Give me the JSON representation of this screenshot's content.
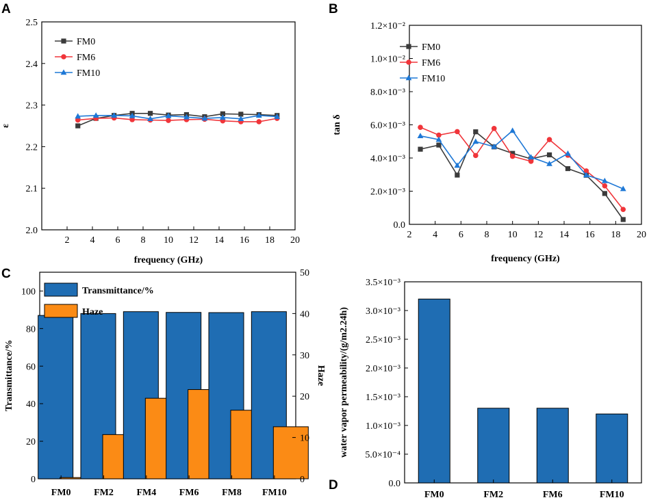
{
  "chart_data": [
    {
      "panel": "A",
      "type": "line",
      "title": "",
      "xlabel": "frequency (GHz)",
      "ylabel": "ε",
      "xlim": [
        0,
        20
      ],
      "ylim": [
        2.0,
        2.5
      ],
      "xticks": [
        "2",
        "4",
        "6",
        "8",
        "10",
        "12",
        "14",
        "16",
        "18",
        "20"
      ],
      "yticks": [
        "2.0",
        "2.1",
        "2.2",
        "2.3",
        "2.4",
        "2.5"
      ],
      "x": [
        2.85,
        4.28,
        5.71,
        7.14,
        8.57,
        10.0,
        11.43,
        12.86,
        14.29,
        15.72,
        17.15,
        18.58
      ],
      "legend_position": "top-left",
      "series": [
        {
          "name": "FM0",
          "color": "#3b3b3b",
          "marker": "square",
          "values": [
            2.25,
            2.268,
            2.275,
            2.28,
            2.28,
            2.276,
            2.277,
            2.272,
            2.279,
            2.278,
            2.277,
            2.275
          ]
        },
        {
          "name": "FM6",
          "color": "#f0353a",
          "marker": "circle",
          "values": [
            2.264,
            2.268,
            2.269,
            2.265,
            2.264,
            2.263,
            2.265,
            2.266,
            2.262,
            2.26,
            2.26,
            2.268
          ]
        },
        {
          "name": "FM10",
          "color": "#1e78d6",
          "marker": "triangle",
          "values": [
            2.273,
            2.275,
            2.275,
            2.274,
            2.267,
            2.274,
            2.271,
            2.268,
            2.27,
            2.267,
            2.275,
            2.272
          ]
        }
      ]
    },
    {
      "panel": "B",
      "type": "line",
      "title": "",
      "xlabel": "frequency (GHz)",
      "ylabel": "tan δ",
      "xlim": [
        2,
        20
      ],
      "ylim": [
        0,
        0.012
      ],
      "xticks": [
        "2",
        "4",
        "6",
        "8",
        "10",
        "12",
        "14",
        "16",
        "18",
        "20"
      ],
      "yticks": [
        "0.0",
        "2.0×10⁻³",
        "4.0×10⁻³",
        "6.0×10⁻³",
        "8.0×10⁻³",
        "1.0×10⁻²",
        "1.2×10⁻²"
      ],
      "x": [
        2.85,
        4.28,
        5.71,
        7.14,
        8.57,
        10.0,
        11.43,
        12.86,
        14.29,
        15.72,
        17.15,
        18.58
      ],
      "legend_position": "top-left",
      "series": [
        {
          "name": "FM0",
          "color": "#3b3b3b",
          "marker": "square",
          "values": [
            0.00453,
            0.00478,
            0.00297,
            0.00558,
            0.00467,
            0.00428,
            0.00395,
            0.00419,
            0.00336,
            0.00296,
            0.00186,
            0.00029
          ]
        },
        {
          "name": "FM6",
          "color": "#f0353a",
          "marker": "circle",
          "values": [
            0.00585,
            0.00538,
            0.00559,
            0.00415,
            0.00578,
            0.0041,
            0.0038,
            0.00511,
            0.00417,
            0.00322,
            0.00232,
            0.0009
          ]
        },
        {
          "name": "FM10",
          "color": "#1e78d6",
          "marker": "triangle",
          "values": [
            0.00533,
            0.00511,
            0.00355,
            0.00499,
            0.00468,
            0.00565,
            0.00405,
            0.00365,
            0.00427,
            0.00297,
            0.00262,
            0.00214
          ]
        }
      ]
    },
    {
      "panel": "C",
      "type": "bar",
      "title": "",
      "xlabel": "",
      "ylabel": "Transmittance/%",
      "y2label": "Haze",
      "categories": [
        "FM0",
        "FM2",
        "FM4",
        "FM6",
        "FM8",
        "FM10"
      ],
      "ylim": [
        0,
        110
      ],
      "y2lim": [
        0,
        50
      ],
      "yticks": [
        "0",
        "20",
        "40",
        "60",
        "80",
        "100"
      ],
      "y2ticks": [
        "0",
        "10",
        "20",
        "30",
        "40",
        "50"
      ],
      "legend_position": "top-left",
      "series": [
        {
          "name": "Transmittance/%",
          "axis": "left",
          "color": "#1f6db3",
          "values": [
            87.0,
            88.0,
            89.0,
            88.6,
            88.5,
            89.0
          ]
        },
        {
          "name": "Haze",
          "axis": "right",
          "color": "#fb8b15",
          "values": [
            0.3,
            10.7,
            19.5,
            21.6,
            16.6,
            12.6
          ]
        }
      ]
    },
    {
      "panel": "D",
      "type": "bar",
      "title": "",
      "xlabel": "",
      "ylabel": "water vapor permeability/(g/m2.24h)",
      "categories": [
        "FM0",
        "FM2",
        "FM6",
        "FM10"
      ],
      "ylim": [
        0,
        0.0035
      ],
      "yticks": [
        "0.0",
        "5.0×10⁻⁴",
        "1.0×10⁻³",
        "1.5×10⁻³",
        "2.0×10⁻³",
        "2.5×10⁻³",
        "3.0×10⁻³",
        "3.5×10⁻³"
      ],
      "series": [
        {
          "name": "water vapor permeability",
          "color": "#1f6db3",
          "values": [
            0.0032,
            0.0013,
            0.0013,
            0.0012
          ]
        }
      ]
    }
  ],
  "panel_labels": [
    "A",
    "B",
    "C",
    "D"
  ]
}
